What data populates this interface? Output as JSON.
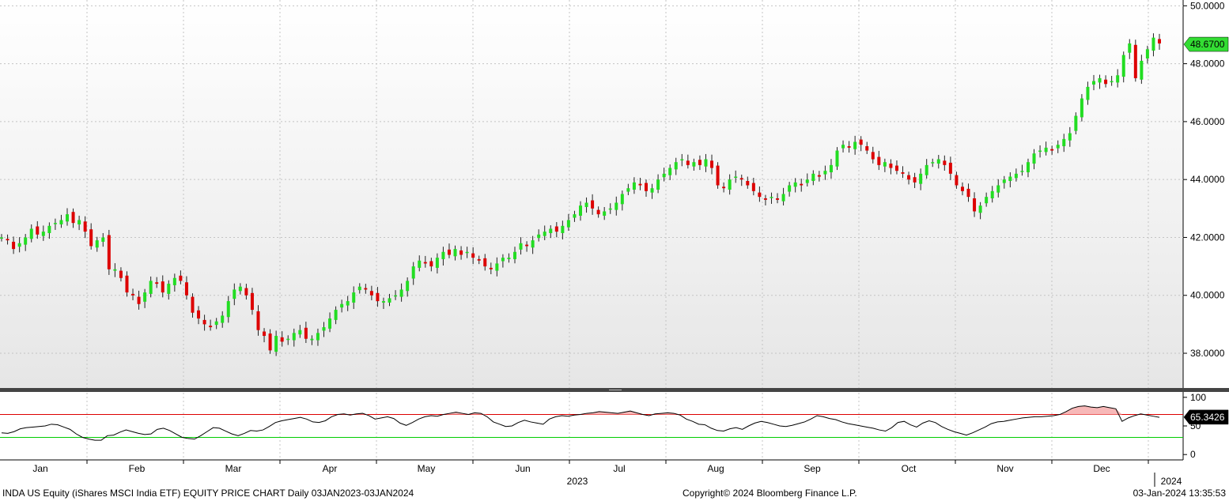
{
  "footer": {
    "left": "INDA US Equity (iShares MSCI India ETF) EQUITY PRICE CHART  Daily 03JAN2023-03JAN2024",
    "center": "Copyright© 2024 Bloomberg Finance L.P.",
    "right": "03-Jan-2024 13:35:53"
  },
  "colors": {
    "up": "#22dd22",
    "down": "#dd0000",
    "last_badge": "#33dd33",
    "rsi_over": "#dd0000",
    "rsi_under": "#00cc00",
    "rsi_fill": "#f7b8b8"
  },
  "chart_data": [
    {
      "type": "candlestick",
      "ticker": "INDA US Equity",
      "ylim": [
        36.8,
        50.2
      ],
      "yticks": [
        "38.0000",
        "40.0000",
        "42.0000",
        "44.0000",
        "46.0000",
        "48.0000",
        "50.0000"
      ],
      "ytick_values": [
        38,
        40,
        42,
        44,
        46,
        48,
        50
      ],
      "xticks_months": [
        "Jan",
        "Feb",
        "Mar",
        "Apr",
        "May",
        "Jun",
        "Jul",
        "Aug",
        "Sep",
        "Oct",
        "Nov",
        "Dec"
      ],
      "xtick_year": "2023",
      "xtick_next_year": "2024",
      "last_price_label": "48.6700",
      "last_price": 48.67,
      "grid": true,
      "closes": [
        42.0,
        41.9,
        41.6,
        41.8,
        42.0,
        42.3,
        42.1,
        42.2,
        42.4,
        42.5,
        42.6,
        42.8,
        42.5,
        42.6,
        42.2,
        41.7,
        41.9,
        42.0,
        40.9,
        40.9,
        40.6,
        40.1,
        40.0,
        39.7,
        40.1,
        40.5,
        40.4,
        40.1,
        40.4,
        40.6,
        40.5,
        40.0,
        39.4,
        39.2,
        39.0,
        38.9,
        39.1,
        39.3,
        39.8,
        40.2,
        40.3,
        40.0,
        39.5,
        38.8,
        38.6,
        38.1,
        38.6,
        38.4,
        38.5,
        38.7,
        38.8,
        38.5,
        38.5,
        38.7,
        38.9,
        39.2,
        39.5,
        39.7,
        39.8,
        40.1,
        40.3,
        40.2,
        40.0,
        39.8,
        39.8,
        39.9,
        40.0,
        40.2,
        40.5,
        41.0,
        41.2,
        41.1,
        41.0,
        41.3,
        41.5,
        41.4,
        41.6,
        41.4,
        41.5,
        41.3,
        41.2,
        41.0,
        40.9,
        41.1,
        41.3,
        41.3,
        41.5,
        41.8,
        41.7,
        41.9,
        42.1,
        42.2,
        42.3,
        42.2,
        42.4,
        42.6,
        42.8,
        43.1,
        43.2,
        43.0,
        42.8,
        42.9,
        43.0,
        43.2,
        43.5,
        43.7,
        43.9,
        43.8,
        43.6,
        43.7,
        44.0,
        44.2,
        44.4,
        44.6,
        44.7,
        44.5,
        44.6,
        44.5,
        44.7,
        44.4,
        43.8,
        43.7,
        44.0,
        44.1,
        44.0,
        43.8,
        43.6,
        43.4,
        43.3,
        43.4,
        43.3,
        43.5,
        43.8,
        43.9,
        43.8,
        44.0,
        44.2,
        44.1,
        44.3,
        44.5,
        45.0,
        45.2,
        45.1,
        45.3,
        45.2,
        45.0,
        44.7,
        44.5,
        44.6,
        44.4,
        44.3,
        44.2,
        44.0,
        43.9,
        44.2,
        44.5,
        44.6,
        44.7,
        44.5,
        44.2,
        43.8,
        43.6,
        43.4,
        42.9,
        43.1,
        43.4,
        43.6,
        43.8,
        44.0,
        44.1,
        44.2,
        44.3,
        44.6,
        44.9,
        45.0,
        45.1,
        45.0,
        45.2,
        45.4,
        45.6,
        46.2,
        46.8,
        47.2,
        47.4,
        47.5,
        47.3,
        47.4,
        47.6,
        48.3,
        48.7,
        47.5,
        48.1,
        48.5,
        48.9,
        48.7
      ],
      "rsi": {
        "ylim": [
          -8,
          108
        ],
        "yticks": [
          "0",
          "50",
          "100"
        ],
        "ytick_values": [
          0,
          50,
          100
        ],
        "overbought": 70,
        "oversold": 30,
        "last_label": "65.3426",
        "last": 65.3426,
        "values": [
          38,
          37,
          40,
          45,
          47,
          48,
          49,
          50,
          53,
          52,
          48,
          44,
          36,
          30,
          27,
          25,
          25,
          33,
          34,
          39,
          43,
          40,
          37,
          35,
          36,
          44,
          46,
          42,
          36,
          30,
          28,
          27,
          33,
          40,
          47,
          46,
          41,
          36,
          33,
          37,
          42,
          41,
          43,
          49,
          56,
          59,
          61,
          63,
          65,
          62,
          57,
          56,
          59,
          66,
          70,
          71,
          69,
          71,
          72,
          68,
          62,
          64,
          66,
          63,
          55,
          51,
          56,
          62,
          66,
          68,
          67,
          70,
          72,
          74,
          72,
          70,
          73,
          72,
          66,
          57,
          53,
          49,
          50,
          56,
          60,
          57,
          55,
          53,
          62,
          66,
          68,
          67,
          69,
          70,
          72,
          73,
          75,
          74,
          73,
          72,
          74,
          76,
          73,
          70,
          68,
          71,
          72,
          73,
          72,
          69,
          62,
          58,
          53,
          52,
          46,
          42,
          41,
          45,
          47,
          44,
          50,
          55,
          58,
          56,
          53,
          50,
          49,
          51,
          54,
          57,
          62,
          68,
          66,
          63,
          61,
          57,
          54,
          52,
          50,
          48,
          46,
          43,
          41,
          47,
          56,
          58,
          52,
          48,
          55,
          59,
          56,
          49,
          44,
          40,
          37,
          34,
          38,
          43,
          48,
          54,
          57,
          58,
          60,
          62,
          64,
          65,
          66,
          66,
          67,
          68,
          70,
          75,
          81,
          84,
          85,
          83,
          82,
          84,
          82,
          80,
          58,
          64,
          68,
          71,
          69,
          67,
          65
        ]
      }
    }
  ]
}
